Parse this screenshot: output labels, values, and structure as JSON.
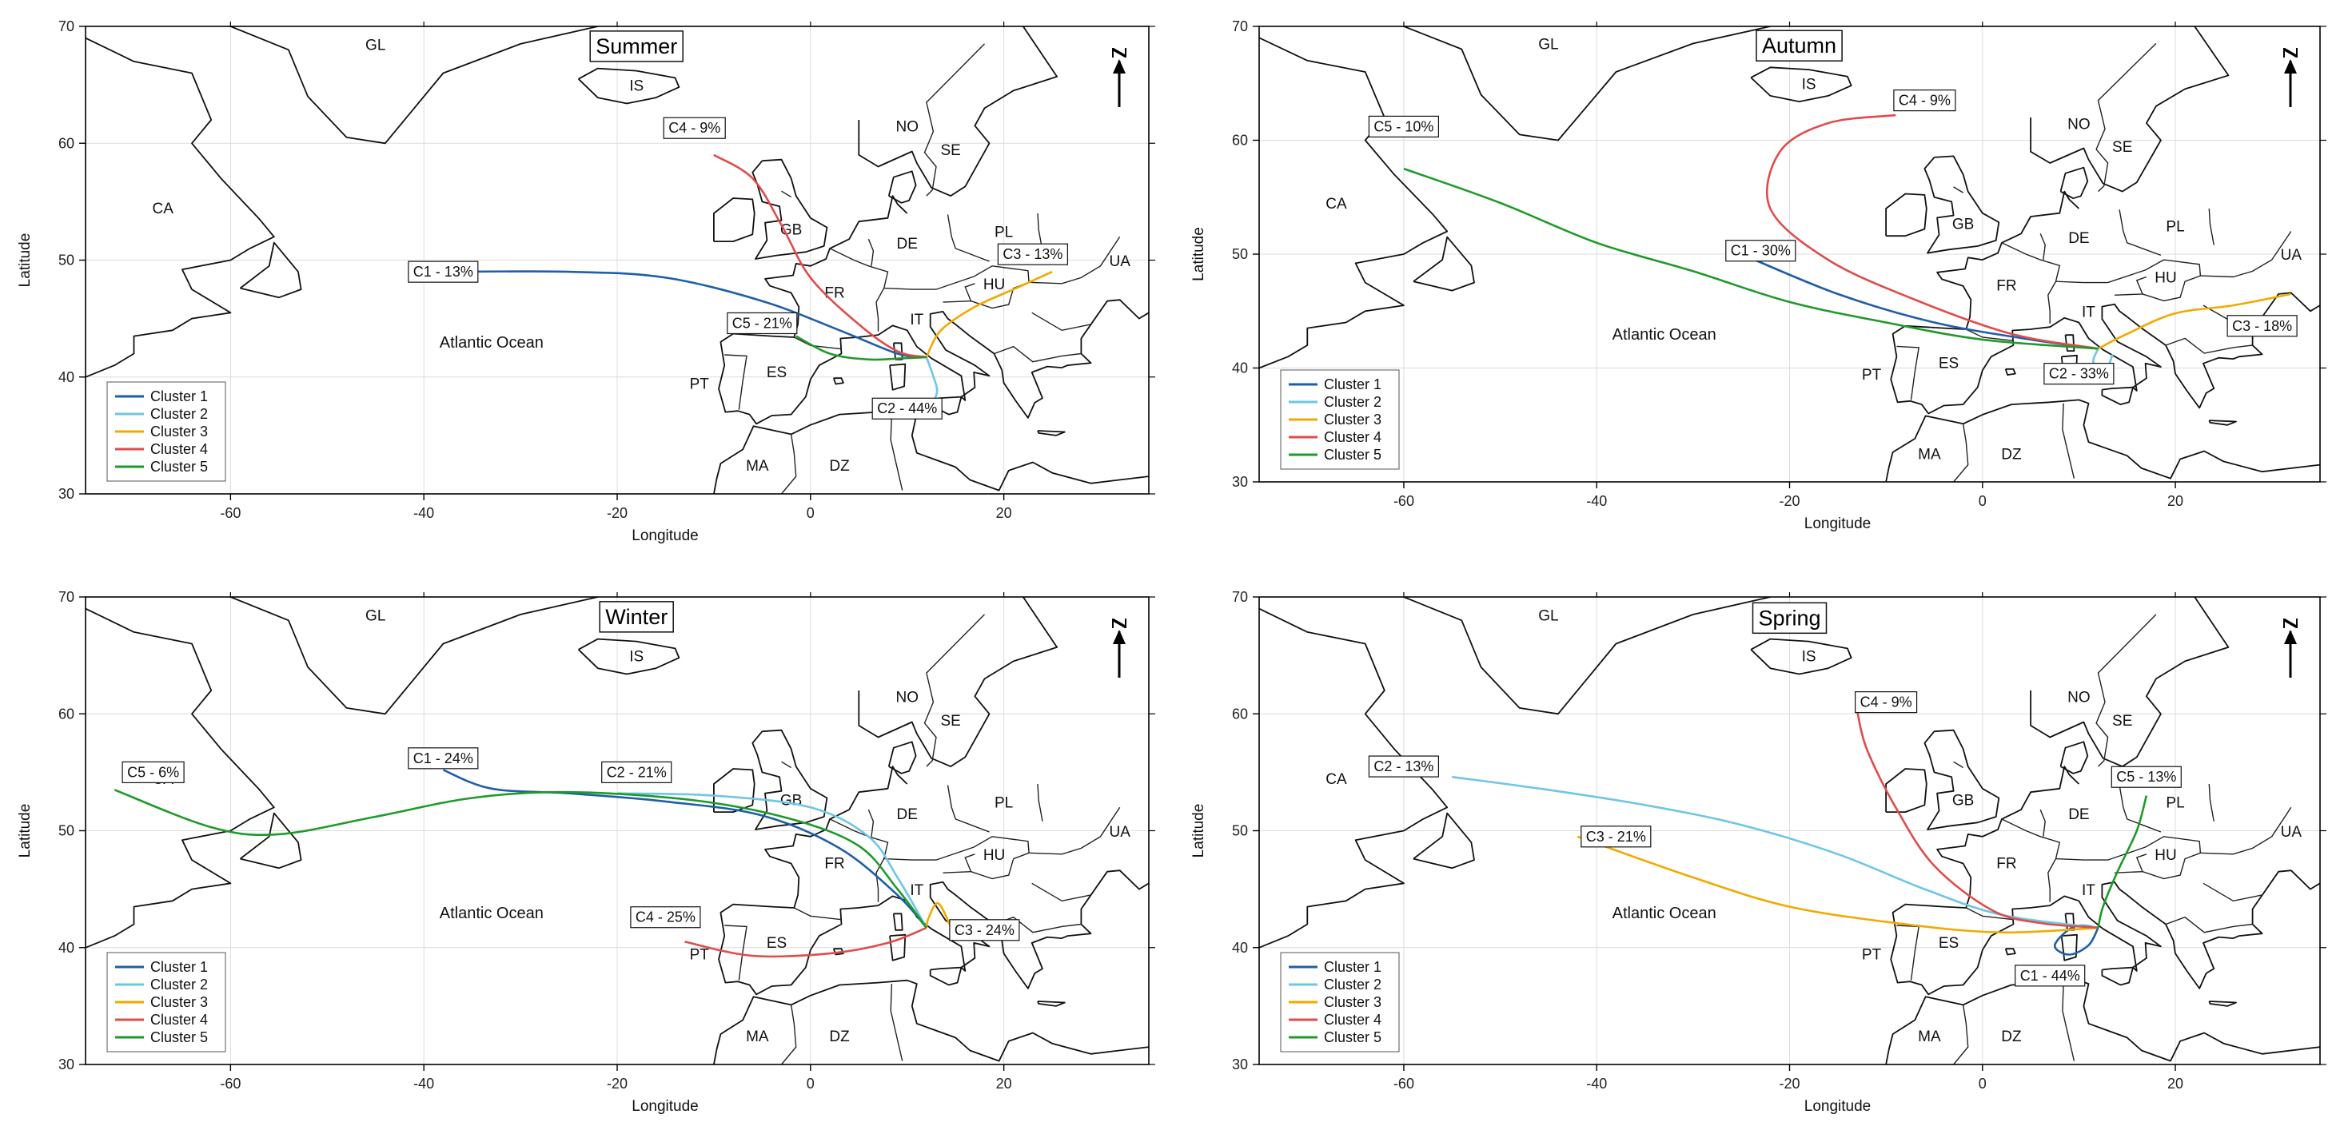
{
  "axes": {
    "x_label": "Longitude",
    "y_label": "Latitude",
    "x_range": [
      -75,
      35
    ],
    "y_range": [
      30,
      70
    ],
    "x_ticks": [
      -60,
      -40,
      -20,
      0,
      20
    ],
    "y_ticks": [
      30,
      40,
      50,
      60,
      70
    ]
  },
  "legend": {
    "placement": "bottom-left",
    "entries": [
      {
        "name": "Cluster 1",
        "color": "#1f5ea8"
      },
      {
        "name": "Cluster 2",
        "color": "#6ec6e6"
      },
      {
        "name": "Cluster 3",
        "color": "#f2a900"
      },
      {
        "name": "Cluster 4",
        "color": "#e04b4b"
      },
      {
        "name": "Cluster 5",
        "color": "#1e9a2a"
      }
    ]
  },
  "places": [
    {
      "code": "GL",
      "lon": -45,
      "lat": 68
    },
    {
      "code": "IS",
      "lon": -18,
      "lat": 64.5
    },
    {
      "code": "CA",
      "lon": -67,
      "lat": 54
    },
    {
      "code": "NO",
      "lon": 10,
      "lat": 61
    },
    {
      "code": "SE",
      "lon": 14.5,
      "lat": 59
    },
    {
      "code": "GB",
      "lon": -2,
      "lat": 52.2
    },
    {
      "code": "DE",
      "lon": 10,
      "lat": 51
    },
    {
      "code": "PL",
      "lon": 20,
      "lat": 52
    },
    {
      "code": "FR",
      "lon": 2.5,
      "lat": 46.8
    },
    {
      "code": "HU",
      "lon": 19,
      "lat": 47.5
    },
    {
      "code": "UA",
      "lon": 32,
      "lat": 49.5
    },
    {
      "code": "IT",
      "lon": 11,
      "lat": 44.5
    },
    {
      "code": "ES",
      "lon": -3.5,
      "lat": 40
    },
    {
      "code": "PT",
      "lon": -11.5,
      "lat": 39
    },
    {
      "code": "MA",
      "lon": -5.5,
      "lat": 32
    },
    {
      "code": "DZ",
      "lon": 3,
      "lat": 32
    },
    {
      "code": "Atlantic Ocean",
      "lon": -33,
      "lat": 42.5
    }
  ],
  "panels": [
    {
      "season": "Summer",
      "trajectories": [
        {
          "cluster": 1,
          "label": "C1 - 13%",
          "points": [
            [
              -38,
              49
            ],
            [
              -25,
              49
            ],
            [
              -15,
              48.5
            ],
            [
              -5,
              46.5
            ],
            [
              3,
              44
            ],
            [
              9,
              42
            ],
            [
              12,
              41.7
            ]
          ]
        },
        {
          "cluster": 2,
          "label": "C2 - 44%",
          "points": [
            [
              12,
              41.7
            ],
            [
              12.6,
              40.3
            ],
            [
              13.1,
              38.9
            ],
            [
              12.8,
              38.0
            ]
          ]
        },
        {
          "cluster": 3,
          "label": "C3 - 13%",
          "points": [
            [
              12,
              41.7
            ],
            [
              13.5,
              44
            ],
            [
              17,
              46
            ],
            [
              21,
              47.5
            ],
            [
              25,
              49
            ]
          ]
        },
        {
          "cluster": 4,
          "label": "C4 - 9%",
          "points": [
            [
              -10,
              59
            ],
            [
              -6,
              57
            ],
            [
              -3,
              53
            ],
            [
              0,
              48.5
            ],
            [
              5,
              44.5
            ],
            [
              9,
              42.2
            ],
            [
              12,
              41.7
            ]
          ]
        },
        {
          "cluster": 5,
          "label": "C5 - 21%",
          "points": [
            [
              -1.5,
              43.5
            ],
            [
              2,
              42
            ],
            [
              6,
              41.5
            ],
            [
              9.5,
              41.6
            ],
            [
              12,
              41.7
            ]
          ]
        }
      ]
    },
    {
      "season": "Autumn",
      "trajectories": [
        {
          "cluster": 1,
          "label": "C1 - 30%",
          "points": [
            [
              -25,
              50
            ],
            [
              -15,
              46.5
            ],
            [
              -5,
              44
            ],
            [
              5,
              42.5
            ],
            [
              12,
              41.7
            ]
          ]
        },
        {
          "cluster": 2,
          "label": "C2 - 33%",
          "points": [
            [
              12,
              41.7
            ],
            [
              11.5,
              40.5
            ],
            [
              12.7,
              39.7
            ],
            [
              13.5,
              41.2
            ]
          ]
        },
        {
          "cluster": 3,
          "label": "C3 - 18%",
          "points": [
            [
              12,
              41.7
            ],
            [
              15,
              43
            ],
            [
              20,
              44.8
            ],
            [
              26,
              45.5
            ],
            [
              32,
              46.5
            ]
          ]
        },
        {
          "cluster": 4,
          "label": "C4 - 9%",
          "points": [
            [
              -9,
              62.2
            ],
            [
              -16,
              61.5
            ],
            [
              -21,
              59
            ],
            [
              -22,
              54
            ],
            [
              -16,
              49.5
            ],
            [
              -7,
              46
            ],
            [
              3,
              43
            ],
            [
              12,
              41.7
            ]
          ]
        },
        {
          "cluster": 5,
          "label": "C5 - 10%",
          "points": [
            [
              -60,
              57.5
            ],
            [
              -50,
              54.5
            ],
            [
              -40,
              51
            ],
            [
              -30,
              48.5
            ],
            [
              -20,
              45.8
            ],
            [
              -10,
              44
            ],
            [
              0,
              42.5
            ],
            [
              12,
              41.7
            ]
          ]
        }
      ]
    },
    {
      "season": "Winter",
      "trajectories": [
        {
          "cluster": 1,
          "label": "C1 - 24%",
          "points": [
            [
              -38,
              55.2
            ],
            [
              -33,
              53.6
            ],
            [
              -25,
              53.2
            ],
            [
              -15,
              52.5
            ],
            [
              -5,
              51.3
            ],
            [
              3,
              48.5
            ],
            [
              9,
              44.5
            ],
            [
              12,
              41.7
            ]
          ]
        },
        {
          "cluster": 2,
          "label": "C2 - 21%",
          "points": [
            [
              -20,
              53.2
            ],
            [
              -10,
              53
            ],
            [
              0,
              52
            ],
            [
              6,
              49.5
            ],
            [
              9,
              46
            ],
            [
              12,
              41.7
            ]
          ]
        },
        {
          "cluster": 3,
          "label": "C3 - 24%",
          "points": [
            [
              14.5,
              41.8
            ],
            [
              13.2,
              43.8
            ],
            [
              12.2,
              42.5
            ],
            [
              12,
              41.7
            ]
          ]
        },
        {
          "cluster": 4,
          "label": "C4 - 25%",
          "points": [
            [
              -13,
              40.5
            ],
            [
              -6,
              39.3
            ],
            [
              2,
              39.5
            ],
            [
              8,
              40.4
            ],
            [
              12,
              41.7
            ]
          ]
        },
        {
          "cluster": 5,
          "label": "C5 - 6%",
          "points": [
            [
              -72,
              53.5
            ],
            [
              -62,
              50.3
            ],
            [
              -55,
              49.7
            ],
            [
              -45,
              51.2
            ],
            [
              -35,
              52.8
            ],
            [
              -25,
              53.3
            ],
            [
              -12,
              52.6
            ],
            [
              -2,
              51
            ],
            [
              5,
              48.7
            ],
            [
              9,
              45
            ],
            [
              12,
              41.7
            ]
          ]
        }
      ]
    },
    {
      "season": "Spring",
      "trajectories": [
        {
          "cluster": 1,
          "label": "C1 - 44%",
          "points": [
            [
              12,
              41.7
            ],
            [
              11,
              40.2
            ],
            [
              9,
              39.4
            ],
            [
              7.5,
              40.2
            ],
            [
              9.5,
              41.8
            ],
            [
              12,
              41.7
            ]
          ]
        },
        {
          "cluster": 2,
          "label": "C2 - 13%",
          "points": [
            [
              -55,
              54.6
            ],
            [
              -45,
              53.5
            ],
            [
              -35,
              52.2
            ],
            [
              -25,
              50.5
            ],
            [
              -15,
              48
            ],
            [
              -6,
              45
            ],
            [
              2,
              42.8
            ],
            [
              12,
              41.7
            ]
          ]
        },
        {
          "cluster": 3,
          "label": "C3 - 21%",
          "points": [
            [
              -42,
              49.5
            ],
            [
              -30,
              46
            ],
            [
              -20,
              43.5
            ],
            [
              -8,
              42
            ],
            [
              2,
              41.3
            ],
            [
              12,
              41.7
            ]
          ]
        },
        {
          "cluster": 4,
          "label": "C4 - 9%",
          "points": [
            [
              -13,
              60.3
            ],
            [
              -12,
              57
            ],
            [
              -9,
              52
            ],
            [
              -5,
              47
            ],
            [
              1,
              43.2
            ],
            [
              6,
              42.1
            ],
            [
              12,
              41.7
            ]
          ]
        },
        {
          "cluster": 5,
          "label": "C5 - 13%",
          "points": [
            [
              17,
              53
            ],
            [
              16,
              50
            ],
            [
              14,
              46.5
            ],
            [
              12.5,
              43.5
            ],
            [
              12,
              41.7
            ]
          ]
        }
      ]
    }
  ]
}
